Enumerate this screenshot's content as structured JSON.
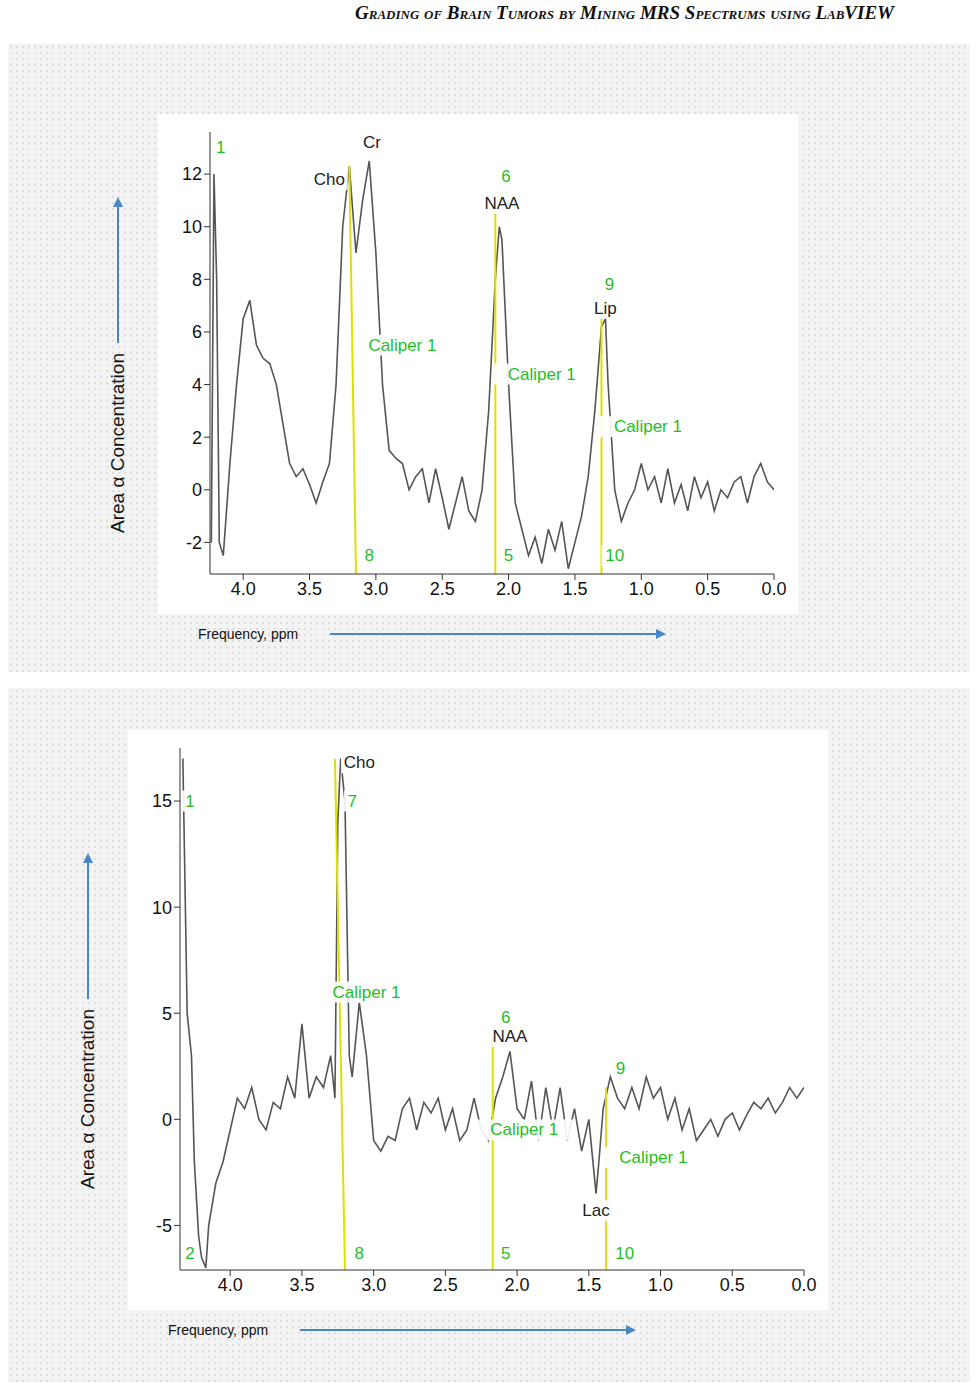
{
  "page_title": "Grading of Brain Tumors by Mining MRS Spectrums using LabVIEW",
  "chart_data": [
    {
      "type": "line",
      "x_label": "Frequency, ppm",
      "y_label": "Area α Concentration",
      "xlim": [
        4.25,
        0
      ],
      "ylim": [
        -3.2,
        13.6
      ],
      "xticks": [
        {
          "value": 4,
          "label": "4.0"
        },
        {
          "value": 3.5,
          "label": "3.5"
        },
        {
          "value": 3,
          "label": "3.0"
        },
        {
          "value": 2.5,
          "label": "2.5"
        },
        {
          "value": 2,
          "label": "2.0"
        },
        {
          "value": 1.5,
          "label": "1.5"
        },
        {
          "value": 1,
          "label": "1.0"
        },
        {
          "value": 0.5,
          "label": "0.5"
        },
        {
          "value": 0,
          "label": "0.0"
        }
      ],
      "yticks": [
        -2,
        0,
        2,
        4,
        6,
        8,
        10,
        12
      ],
      "grid": false,
      "series": [
        {
          "color": "#555555",
          "x": [
            4.24,
            4.22,
            4.2,
            4.18,
            4.15,
            4.1,
            4.05,
            4.0,
            3.95,
            3.9,
            3.85,
            3.8,
            3.75,
            3.7,
            3.65,
            3.6,
            3.55,
            3.5,
            3.45,
            3.4,
            3.35,
            3.3,
            3.25,
            3.2,
            3.15,
            3.1,
            3.05,
            3.0,
            2.95,
            2.9,
            2.85,
            2.8,
            2.75,
            2.7,
            2.65,
            2.6,
            2.55,
            2.5,
            2.45,
            2.4,
            2.35,
            2.3,
            2.25,
            2.2,
            2.15,
            2.1,
            2.07,
            2.05,
            2.0,
            1.95,
            1.9,
            1.85,
            1.8,
            1.75,
            1.7,
            1.65,
            1.6,
            1.55,
            1.5,
            1.45,
            1.4,
            1.35,
            1.3,
            1.27,
            1.25,
            1.2,
            1.15,
            1.1,
            1.05,
            1.0,
            0.95,
            0.9,
            0.85,
            0.8,
            0.75,
            0.7,
            0.65,
            0.6,
            0.55,
            0.5,
            0.45,
            0.4,
            0.35,
            0.3,
            0.25,
            0.2,
            0.15,
            0.1,
            0.05,
            0.0
          ],
          "values": [
            -2,
            12,
            8,
            -2,
            -2.5,
            1,
            4,
            6.5,
            7.2,
            5.5,
            5,
            4.8,
            4,
            2.5,
            1,
            0.5,
            0.8,
            0.2,
            -0.5,
            0.3,
            1,
            4,
            10,
            12.3,
            9,
            11,
            12.5,
            9,
            4,
            1.5,
            1.2,
            1,
            0,
            0.5,
            0.8,
            -0.5,
            0.8,
            -0.3,
            -1.5,
            -0.5,
            0.5,
            -0.8,
            -1.2,
            0,
            3,
            8,
            10,
            9.5,
            4,
            -0.5,
            -1.5,
            -2.5,
            -1.8,
            -2.8,
            -1.5,
            -2.3,
            -1.2,
            -3,
            -2,
            -1,
            0.5,
            3,
            6.2,
            6.5,
            4,
            0,
            -1.2,
            -0.5,
            0,
            1,
            0,
            0.5,
            -0.5,
            0.8,
            -0.5,
            0.2,
            -0.8,
            0.5,
            -0.3,
            0.3,
            -0.8,
            0,
            -0.3,
            0.3,
            0.5,
            -0.5,
            0.5,
            1,
            0.3,
            0
          ]
        }
      ],
      "calipers": [
        {
          "x": [
            3.2,
            3.15
          ],
          "y": [
            12.3,
            -3.2
          ],
          "color": "#e0e000"
        },
        {
          "x": [
            2.1,
            2.1
          ],
          "y": [
            10.5,
            -3.2
          ],
          "color": "#e0e000"
        },
        {
          "x": [
            1.3,
            1.3
          ],
          "y": [
            6.8,
            -3.2
          ],
          "color": "#e0e000"
        }
      ],
      "annotations": [
        {
          "text": "Cho",
          "x": 3.35,
          "y": 11.8,
          "color": "#222222"
        },
        {
          "text": "Cr",
          "x": 3.03,
          "y": 13.2,
          "color": "#222222"
        },
        {
          "text": "NAA",
          "x": 2.05,
          "y": 10.9,
          "color": "#222222"
        },
        {
          "text": "Lip",
          "x": 1.27,
          "y": 6.9,
          "color": "#222222"
        },
        {
          "text": "Caliper 1",
          "x": 2.8,
          "y": 5.5,
          "color": "#1fbf1f"
        },
        {
          "text": "Caliper 1",
          "x": 1.75,
          "y": 4.4,
          "color": "#1fbf1f"
        },
        {
          "text": "Caliper 1",
          "x": 0.95,
          "y": 2.4,
          "color": "#1fbf1f"
        },
        {
          "text": "1",
          "x": 4.17,
          "y": 13.0,
          "color": "#1fbf1f"
        },
        {
          "text": "6",
          "x": 2.02,
          "y": 11.9,
          "color": "#1fbf1f"
        },
        {
          "text": "9",
          "x": 1.24,
          "y": 7.8,
          "color": "#1fbf1f"
        },
        {
          "text": "8",
          "x": 3.05,
          "y": -2.5,
          "color": "#1fbf1f"
        },
        {
          "text": "5",
          "x": 2.0,
          "y": -2.5,
          "color": "#1fbf1f"
        },
        {
          "text": "10",
          "x": 1.2,
          "y": -2.5,
          "color": "#1fbf1f"
        }
      ]
    },
    {
      "type": "line",
      "x_label": "Frequency, ppm",
      "y_label": "Area α Concentration",
      "xlim": [
        4.35,
        0
      ],
      "ylim": [
        -7.1,
        17.5
      ],
      "xticks": [
        {
          "value": 4,
          "label": "4.0"
        },
        {
          "value": 3.5,
          "label": "3.5"
        },
        {
          "value": 3,
          "label": "3.0"
        },
        {
          "value": 2.5,
          "label": "2.5"
        },
        {
          "value": 2,
          "label": "2.0"
        },
        {
          "value": 1.5,
          "label": "1.5"
        },
        {
          "value": 1,
          "label": "1.0"
        },
        {
          "value": 0.5,
          "label": "0.5"
        },
        {
          "value": 0,
          "label": "0.0"
        }
      ],
      "yticks": [
        -5,
        0,
        5,
        10,
        15
      ],
      "grid": false,
      "series": [
        {
          "color": "#555555",
          "x": [
            4.33,
            4.3,
            4.27,
            4.25,
            4.22,
            4.2,
            4.17,
            4.15,
            4.1,
            4.05,
            4.0,
            3.95,
            3.9,
            3.85,
            3.8,
            3.75,
            3.7,
            3.65,
            3.6,
            3.55,
            3.5,
            3.45,
            3.4,
            3.35,
            3.3,
            3.27,
            3.25,
            3.23,
            3.2,
            3.17,
            3.15,
            3.1,
            3.05,
            3.0,
            2.95,
            2.9,
            2.85,
            2.8,
            2.75,
            2.7,
            2.65,
            2.6,
            2.55,
            2.5,
            2.45,
            2.4,
            2.35,
            2.3,
            2.25,
            2.2,
            2.15,
            2.1,
            2.05,
            2.0,
            1.95,
            1.9,
            1.85,
            1.8,
            1.75,
            1.7,
            1.65,
            1.6,
            1.55,
            1.5,
            1.45,
            1.43,
            1.4,
            1.35,
            1.3,
            1.25,
            1.2,
            1.15,
            1.1,
            1.05,
            1.0,
            0.95,
            0.9,
            0.85,
            0.8,
            0.75,
            0.7,
            0.65,
            0.6,
            0.55,
            0.5,
            0.45,
            0.4,
            0.35,
            0.3,
            0.25,
            0.2,
            0.15,
            0.1,
            0.05,
            0.0
          ],
          "values": [
            17,
            5,
            3,
            -2,
            -5.5,
            -6.5,
            -7,
            -5,
            -3,
            -2,
            -0.5,
            1,
            0.5,
            1.5,
            0,
            -0.5,
            0.8,
            0.5,
            2,
            1,
            4.5,
            1,
            2,
            1.5,
            3,
            1,
            14,
            17,
            15,
            3,
            2,
            5.5,
            3,
            -1,
            -1.5,
            -0.8,
            -1,
            0.5,
            1,
            -0.5,
            0.8,
            0.3,
            1,
            -0.5,
            0.5,
            -1,
            -0.5,
            1,
            -0.5,
            -1,
            1,
            2,
            3.2,
            0.5,
            0,
            1.8,
            -1,
            1.5,
            -0.5,
            1.5,
            -1,
            0.5,
            -1.5,
            0,
            -3.5,
            -2,
            0.5,
            2,
            1,
            0.5,
            1.5,
            0.5,
            2,
            1,
            1.5,
            0,
            1,
            -0.5,
            0.5,
            -1,
            -0.5,
            0,
            -0.8,
            0,
            0.3,
            -0.5,
            0.2,
            0.8,
            0.5,
            1,
            0.3,
            0.8,
            1.5,
            1,
            1.5
          ]
        }
      ],
      "calipers": [
        {
          "x": [
            3.27,
            3.2
          ],
          "y": [
            17,
            -7.1
          ],
          "color": "#e0e000"
        },
        {
          "x": [
            2.17,
            2.17
          ],
          "y": [
            4,
            -7.1
          ],
          "color": "#e0e000"
        },
        {
          "x": [
            1.38,
            1.38
          ],
          "y": [
            1.5,
            -7.1
          ],
          "color": "#e0e000"
        }
      ],
      "annotations": [
        {
          "text": "Cho",
          "x": 3.1,
          "y": 16.8,
          "color": "#222222"
        },
        {
          "text": "NAA",
          "x": 2.05,
          "y": 3.9,
          "color": "#222222"
        },
        {
          "text": "Lac",
          "x": 1.45,
          "y": -4.3,
          "color": "#222222"
        },
        {
          "text": "Caliper 1",
          "x": 3.05,
          "y": 6.0,
          "color": "#1fbf1f"
        },
        {
          "text": "Caliper 1",
          "x": 1.95,
          "y": -0.5,
          "color": "#1fbf1f"
        },
        {
          "text": "Caliper 1",
          "x": 1.05,
          "y": -1.8,
          "color": "#1fbf1f"
        },
        {
          "text": "1",
          "x": 4.28,
          "y": 15.0,
          "color": "#1fbf1f"
        },
        {
          "text": "7",
          "x": 3.15,
          "y": 15.0,
          "color": "#1fbf1f"
        },
        {
          "text": "6",
          "x": 2.08,
          "y": 4.8,
          "color": "#1fbf1f"
        },
        {
          "text": "9",
          "x": 1.28,
          "y": 2.4,
          "color": "#1fbf1f"
        },
        {
          "text": "2",
          "x": 4.28,
          "y": -6.3,
          "color": "#1fbf1f"
        },
        {
          "text": "8",
          "x": 3.1,
          "y": -6.3,
          "color": "#1fbf1f"
        },
        {
          "text": "5",
          "x": 2.08,
          "y": -6.3,
          "color": "#1fbf1f"
        },
        {
          "text": "10",
          "x": 1.25,
          "y": -6.3,
          "color": "#1fbf1f"
        }
      ]
    }
  ]
}
